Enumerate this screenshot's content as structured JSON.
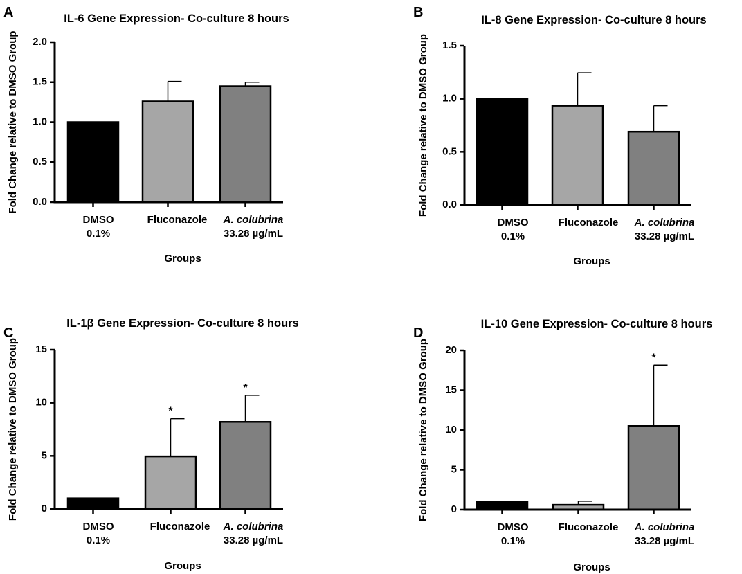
{
  "chart_data": [
    {
      "panel": "A",
      "type": "bar",
      "title": "IL-6 Gene Expression- Co-culture 8 hours",
      "xlabel": "Groups",
      "ylabel": "Fold Change relative to DMSO Group",
      "ylim": [
        0,
        2.0
      ],
      "yticks": [
        "0.0",
        "0.5",
        "1.0",
        "1.5",
        "2.0"
      ],
      "categories": [
        {
          "line1": "DMSO",
          "line2": "0.1%",
          "italic": false
        },
        {
          "line1": "Fluconazole",
          "line2": "",
          "italic": false
        },
        {
          "line1": "A. colubrina",
          "line2": "33.28 µg/mL",
          "italic": true
        }
      ],
      "values": [
        1.0,
        1.26,
        1.45
      ],
      "error": [
        0,
        0.25,
        0.05
      ],
      "significance": [
        "",
        "",
        ""
      ]
    },
    {
      "panel": "B",
      "type": "bar",
      "title": "IL-8 Gene Expression- Co-culture 8 hours",
      "xlabel": "Groups",
      "ylabel": "Fold Change relative to DMSO Group",
      "ylim": [
        0,
        1.5
      ],
      "yticks": [
        "0.0",
        "0.5",
        "1.0",
        "1.5"
      ],
      "categories": [
        {
          "line1": "DMSO",
          "line2": "0.1%",
          "italic": false
        },
        {
          "line1": "Fluconazole",
          "line2": "",
          "italic": false
        },
        {
          "line1": "A. colubrina",
          "line2": "33.28 µg/mL",
          "italic": true
        }
      ],
      "values": [
        1.0,
        0.935,
        0.69
      ],
      "error": [
        0,
        0.31,
        0.245
      ],
      "significance": [
        "",
        "",
        ""
      ]
    },
    {
      "panel": "C",
      "type": "bar",
      "title": "IL-1β Gene Expression- Co-culture 8 hours",
      "xlabel": "Groups",
      "ylabel": "Fold Change relative to DMSO Group",
      "ylim": [
        0,
        15
      ],
      "yticks": [
        "0",
        "5",
        "10",
        "15"
      ],
      "categories": [
        {
          "line1": "DMSO",
          "line2": "0.1%",
          "italic": false
        },
        {
          "line1": "Fluconazole",
          "line2": "",
          "italic": false
        },
        {
          "line1": "A. colubrina",
          "line2": "33.28 µg/mL",
          "italic": true
        }
      ],
      "values": [
        1.0,
        4.95,
        8.2
      ],
      "error": [
        0,
        3.55,
        2.5
      ],
      "significance": [
        "",
        "*",
        "*"
      ]
    },
    {
      "panel": "D",
      "type": "bar",
      "title": "IL-10 Gene Expression- Co-culture 8 hours",
      "xlabel": "Groups",
      "ylabel": "Fold Change relative to DMSO Group",
      "ylim": [
        0,
        20
      ],
      "yticks": [
        "0",
        "5",
        "10",
        "15",
        "20"
      ],
      "categories": [
        {
          "line1": "DMSO",
          "line2": "0.1%",
          "italic": false
        },
        {
          "line1": "Fluconazole",
          "line2": "",
          "italic": false
        },
        {
          "line1": "A. colubrina",
          "line2": "33.28 µg/mL",
          "italic": true
        }
      ],
      "values": [
        1.0,
        0.6,
        10.5
      ],
      "error": [
        0,
        0.45,
        7.65
      ],
      "significance": [
        "",
        "",
        "*"
      ]
    }
  ],
  "colors": {
    "bar_fills": [
      "#000000",
      "#a6a6a6",
      "#808080"
    ],
    "axis": "#000000",
    "text": "#000000"
  }
}
